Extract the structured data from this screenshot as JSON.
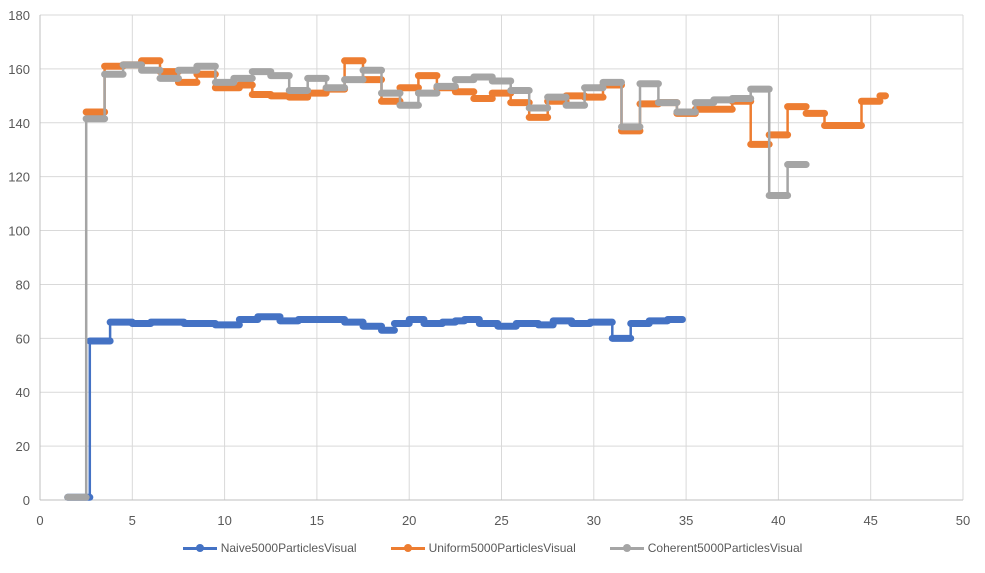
{
  "chart_data": {
    "type": "line",
    "step": true,
    "xlim": [
      0,
      50
    ],
    "ylim": [
      0,
      180
    ],
    "xticks": [
      0,
      5,
      10,
      15,
      20,
      25,
      30,
      35,
      40,
      45,
      50
    ],
    "yticks": [
      0,
      20,
      40,
      60,
      80,
      100,
      120,
      140,
      160,
      180
    ],
    "grid": true,
    "legend_position": "bottom",
    "series": [
      {
        "name": "Naive5000ParticlesVisual",
        "color": "#4472C4",
        "points": [
          [
            1.5,
            1
          ],
          [
            2.7,
            1
          ],
          [
            2.7,
            59
          ],
          [
            3.8,
            59
          ],
          [
            3.8,
            66
          ],
          [
            5,
            66
          ],
          [
            5,
            65.5
          ],
          [
            6,
            65.5
          ],
          [
            6,
            66
          ],
          [
            7.8,
            66
          ],
          [
            7.8,
            65.5
          ],
          [
            9.5,
            65.5
          ],
          [
            9.5,
            65
          ],
          [
            10.8,
            65
          ],
          [
            10.8,
            67
          ],
          [
            11.8,
            67
          ],
          [
            11.8,
            68
          ],
          [
            13,
            68
          ],
          [
            13,
            66.5
          ],
          [
            14,
            66.5
          ],
          [
            14,
            67
          ],
          [
            16.5,
            67
          ],
          [
            16.5,
            66
          ],
          [
            17.5,
            66
          ],
          [
            17.5,
            64.5
          ],
          [
            18.5,
            64.5
          ],
          [
            18.5,
            63
          ],
          [
            19.2,
            63
          ],
          [
            19.2,
            65.5
          ],
          [
            20,
            65.5
          ],
          [
            20,
            67
          ],
          [
            20.8,
            67
          ],
          [
            20.8,
            65.5
          ],
          [
            21.8,
            65.5
          ],
          [
            21.8,
            66
          ],
          [
            22.5,
            66
          ],
          [
            22.5,
            66.5
          ],
          [
            23,
            66.5
          ],
          [
            23,
            67
          ],
          [
            23.8,
            67
          ],
          [
            23.8,
            65.5
          ],
          [
            24.8,
            65.5
          ],
          [
            24.8,
            64.5
          ],
          [
            25.8,
            64.5
          ],
          [
            25.8,
            65.5
          ],
          [
            27,
            65.5
          ],
          [
            27,
            65
          ],
          [
            27.8,
            65
          ],
          [
            27.8,
            66.5
          ],
          [
            28.8,
            66.5
          ],
          [
            28.8,
            65.5
          ],
          [
            29.8,
            65.5
          ],
          [
            29.8,
            66
          ],
          [
            31,
            66
          ],
          [
            31,
            60
          ],
          [
            32,
            60
          ],
          [
            32,
            65.5
          ],
          [
            33,
            65.5
          ],
          [
            33,
            66.5
          ],
          [
            34,
            66.5
          ],
          [
            34,
            67
          ],
          [
            34.8,
            67
          ]
        ]
      },
      {
        "name": "Uniform5000ParticlesVisual",
        "color": "#ED7D31",
        "points": [
          [
            2.5,
            144
          ],
          [
            3.5,
            144
          ],
          [
            3.5,
            161
          ],
          [
            4.5,
            161
          ],
          [
            4.5,
            161.5
          ],
          [
            5.5,
            161.5
          ],
          [
            5.5,
            163
          ],
          [
            6.5,
            163
          ],
          [
            6.5,
            159
          ],
          [
            7.5,
            159
          ],
          [
            7.5,
            155
          ],
          [
            8.5,
            155
          ],
          [
            8.5,
            158
          ],
          [
            9.5,
            158
          ],
          [
            9.5,
            153
          ],
          [
            10.8,
            153
          ],
          [
            10.8,
            154
          ],
          [
            11.5,
            154
          ],
          [
            11.5,
            150.5
          ],
          [
            12.5,
            150.5
          ],
          [
            12.5,
            150
          ],
          [
            13.5,
            150
          ],
          [
            13.5,
            149.5
          ],
          [
            14.5,
            149.5
          ],
          [
            14.5,
            151
          ],
          [
            15.5,
            151
          ],
          [
            15.5,
            152.5
          ],
          [
            16.5,
            152.5
          ],
          [
            16.5,
            163
          ],
          [
            17.5,
            163
          ],
          [
            17.5,
            156
          ],
          [
            18.5,
            156
          ],
          [
            18.5,
            148
          ],
          [
            19.5,
            148
          ],
          [
            19.5,
            153
          ],
          [
            20.5,
            153
          ],
          [
            20.5,
            157.5
          ],
          [
            21.5,
            157.5
          ],
          [
            21.5,
            153
          ],
          [
            22.5,
            153
          ],
          [
            22.5,
            151.5
          ],
          [
            23.5,
            151.5
          ],
          [
            23.5,
            149
          ],
          [
            24.5,
            149
          ],
          [
            24.5,
            151
          ],
          [
            25.5,
            151
          ],
          [
            25.5,
            147.5
          ],
          [
            26.5,
            147.5
          ],
          [
            26.5,
            142
          ],
          [
            27.5,
            142
          ],
          [
            27.5,
            148
          ],
          [
            28.5,
            148
          ],
          [
            28.5,
            150
          ],
          [
            29.5,
            150
          ],
          [
            29.5,
            149.5
          ],
          [
            30.5,
            149.5
          ],
          [
            30.5,
            154
          ],
          [
            31.5,
            154
          ],
          [
            31.5,
            137
          ],
          [
            32.5,
            137
          ],
          [
            32.5,
            147
          ],
          [
            33.5,
            147
          ],
          [
            33.5,
            147.5
          ],
          [
            34.5,
            147.5
          ],
          [
            34.5,
            143.5
          ],
          [
            35.5,
            143.5
          ],
          [
            35.5,
            145
          ],
          [
            37.5,
            145
          ],
          [
            37.5,
            148
          ],
          [
            38.5,
            148
          ],
          [
            38.5,
            132
          ],
          [
            39.5,
            132
          ],
          [
            39.5,
            135.5
          ],
          [
            40.5,
            135.5
          ],
          [
            40.5,
            146
          ],
          [
            41.5,
            146
          ],
          [
            41.5,
            143.5
          ],
          [
            42.5,
            143.5
          ],
          [
            42.5,
            139
          ],
          [
            44.5,
            139
          ],
          [
            44.5,
            148
          ],
          [
            45.5,
            148
          ],
          [
            45.5,
            150
          ],
          [
            45.8,
            150
          ]
        ]
      },
      {
        "name": "Coherent5000ParticlesVisual",
        "color": "#A5A5A5",
        "points": [
          [
            1.5,
            1
          ],
          [
            2.5,
            1
          ],
          [
            2.5,
            141.5
          ],
          [
            3.5,
            141.5
          ],
          [
            3.5,
            158
          ],
          [
            4.5,
            158
          ],
          [
            4.5,
            161.5
          ],
          [
            5.5,
            161.5
          ],
          [
            5.5,
            159.5
          ],
          [
            6.5,
            159.5
          ],
          [
            6.5,
            156.5
          ],
          [
            7.5,
            156.5
          ],
          [
            7.5,
            159.5
          ],
          [
            8.5,
            159.5
          ],
          [
            8.5,
            161
          ],
          [
            9.5,
            161
          ],
          [
            9.5,
            155
          ],
          [
            10.5,
            155
          ],
          [
            10.5,
            156.5
          ],
          [
            11.5,
            156.5
          ],
          [
            11.5,
            159
          ],
          [
            12.5,
            159
          ],
          [
            12.5,
            157.5
          ],
          [
            13.5,
            157.5
          ],
          [
            13.5,
            152
          ],
          [
            14.5,
            152
          ],
          [
            14.5,
            156.5
          ],
          [
            15.5,
            156.5
          ],
          [
            15.5,
            153
          ],
          [
            16.5,
            153
          ],
          [
            16.5,
            156
          ],
          [
            17.5,
            156
          ],
          [
            17.5,
            159.5
          ],
          [
            18.5,
            159.5
          ],
          [
            18.5,
            151
          ],
          [
            19.5,
            151
          ],
          [
            19.5,
            146.5
          ],
          [
            20.5,
            146.5
          ],
          [
            20.5,
            151
          ],
          [
            21.5,
            151
          ],
          [
            21.5,
            153.5
          ],
          [
            22.5,
            153.5
          ],
          [
            22.5,
            156
          ],
          [
            23.5,
            156
          ],
          [
            23.5,
            157
          ],
          [
            24.5,
            157
          ],
          [
            24.5,
            155.5
          ],
          [
            25.5,
            155.5
          ],
          [
            25.5,
            152
          ],
          [
            26.5,
            152
          ],
          [
            26.5,
            145.5
          ],
          [
            27.5,
            145.5
          ],
          [
            27.5,
            149.5
          ],
          [
            28.5,
            149.5
          ],
          [
            28.5,
            146.5
          ],
          [
            29.5,
            146.5
          ],
          [
            29.5,
            153
          ],
          [
            30.5,
            153
          ],
          [
            30.5,
            155
          ],
          [
            31.5,
            155
          ],
          [
            31.5,
            138.5
          ],
          [
            32.5,
            138.5
          ],
          [
            32.5,
            154.5
          ],
          [
            33.5,
            154.5
          ],
          [
            33.5,
            147.5
          ],
          [
            34.5,
            147.5
          ],
          [
            34.5,
            144
          ],
          [
            35.5,
            144
          ],
          [
            35.5,
            147.5
          ],
          [
            36.5,
            147.5
          ],
          [
            36.5,
            148.5
          ],
          [
            37.5,
            148.5
          ],
          [
            37.5,
            149
          ],
          [
            38.5,
            149
          ],
          [
            38.5,
            152.5
          ],
          [
            39.5,
            152.5
          ],
          [
            39.5,
            113
          ],
          [
            40.5,
            113
          ],
          [
            40.5,
            124.5
          ],
          [
            41.5,
            124.5
          ]
        ]
      }
    ]
  }
}
